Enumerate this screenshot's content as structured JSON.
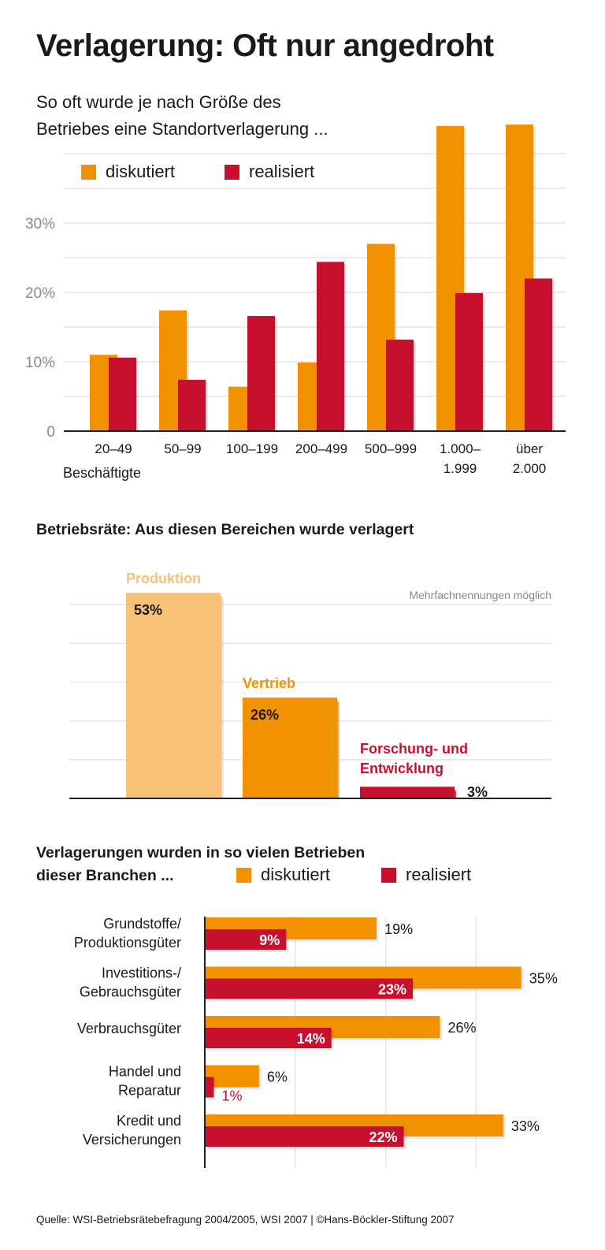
{
  "title": "Verlagerung: Oft nur angedroht",
  "colors": {
    "diskutiert": "#f39200",
    "realisiert": "#c8102e",
    "produktion": "#f8c175",
    "grid": "#e6e6e6",
    "axis": "#222222"
  },
  "chart_data": [
    {
      "type": "bar",
      "subtitle_lines": [
        "So oft wurde je nach Größe des",
        "Betriebes eine Standortverlagerung ..."
      ],
      "xlabel": "Beschäftigte",
      "categories": [
        [
          "20–49"
        ],
        [
          "50–99"
        ],
        [
          "100–199"
        ],
        [
          "200–499"
        ],
        [
          "500–999"
        ],
        [
          "1.000–",
          "1.999"
        ],
        [
          "über",
          "2.000"
        ]
      ],
      "series": [
        {
          "name": "diskutiert",
          "color": "#f39200",
          "values": [
            11,
            17.4,
            6.4,
            9.9,
            27,
            44,
            44.2
          ]
        },
        {
          "name": "realisiert",
          "color": "#c8102e",
          "values": [
            10.6,
            7.4,
            16.6,
            24.4,
            13.2,
            19.9,
            22
          ]
        }
      ],
      "yticks": [
        {
          "value": 0,
          "label": "0"
        },
        {
          "value": 10,
          "label": "10%"
        },
        {
          "value": 20,
          "label": "20%"
        },
        {
          "value": 30,
          "label": "30%"
        }
      ],
      "ylim": [
        0,
        45
      ],
      "grid": true,
      "legend": "top-left"
    },
    {
      "type": "bar",
      "title": "Betriebsräte: Aus diesen Bereichen wurde verlagert",
      "note": "Mehrfachnennungen möglich",
      "categories": [
        [
          "Produktion"
        ],
        [
          "Vertrieb"
        ],
        [
          "Forschung- und",
          "Entwicklung"
        ]
      ],
      "values": [
        53,
        26,
        3
      ],
      "value_labels": [
        "53%",
        "26%",
        "3%"
      ],
      "colors": [
        "#f8c175",
        "#f39200",
        "#c8102e"
      ],
      "ylim": [
        0,
        53
      ],
      "grid": true
    },
    {
      "type": "bar",
      "orientation": "horizontal",
      "title_lines": [
        "Verlagerungen wurden in so vielen Betrieben",
        "dieser Branchen ..."
      ],
      "categories": [
        [
          "Grundstoffe/",
          "Produktionsgüter"
        ],
        [
          "Investitions-/",
          "Gebrauchsgüter"
        ],
        [
          "Verbrauchsgüter"
        ],
        [
          "Handel und",
          "Reparatur"
        ],
        [
          "Kredit und",
          "Versicherungen"
        ]
      ],
      "series": [
        {
          "name": "diskutiert",
          "color": "#f39200",
          "values": [
            19,
            35,
            26,
            6,
            33
          ],
          "labels": [
            "19%",
            "35%",
            "26%",
            "6%",
            "33%"
          ]
        },
        {
          "name": "realisiert",
          "color": "#c8102e",
          "values": [
            9,
            23,
            14,
            1,
            22
          ],
          "labels": [
            "9%",
            "23%",
            "14%",
            "1%",
            "22%"
          ]
        }
      ],
      "xlim": [
        0,
        40
      ],
      "grid": true,
      "legend": "top-right"
    }
  ],
  "footer": "Quelle: WSI-Betriebsrätebefragung 2004/2005, WSI 2007 | ©Hans-Böckler-Stiftung 2007"
}
